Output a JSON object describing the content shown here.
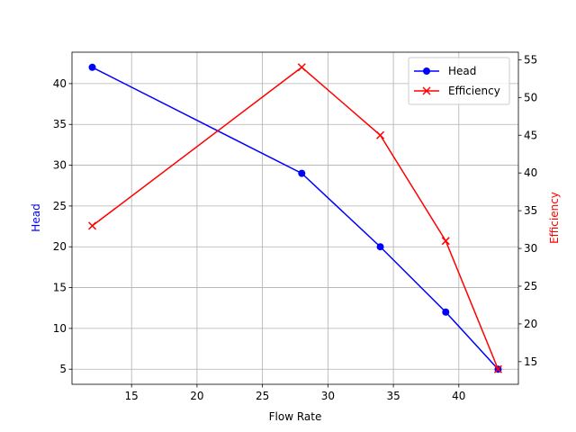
{
  "chart_data": {
    "type": "line",
    "x_label": "Flow Rate",
    "y_label": "Head",
    "y2_label": "Efficiency",
    "x": [
      12,
      28,
      34,
      39,
      43
    ],
    "series": [
      {
        "name": "Head",
        "color": "#0000ff",
        "marker": "o",
        "values": [
          42,
          29,
          20,
          12,
          5
        ]
      },
      {
        "name": "Efficiency",
        "color": "#ff0000",
        "marker": "x",
        "axis": "y2",
        "values": [
          33,
          54,
          45,
          31,
          14
        ]
      }
    ],
    "xlim": [
      10.45,
      44.55
    ],
    "xticks": [
      15,
      20,
      25,
      30,
      35,
      40
    ],
    "ylim": [
      3.15,
      43.85
    ],
    "yticks": [
      5,
      10,
      15,
      20,
      25,
      30,
      35,
      40
    ],
    "y2lim": [
      12,
      56
    ],
    "y2ticks": [
      15,
      20,
      25,
      30,
      35,
      40,
      45,
      50,
      55
    ],
    "grid": true,
    "legend": "upper right"
  }
}
